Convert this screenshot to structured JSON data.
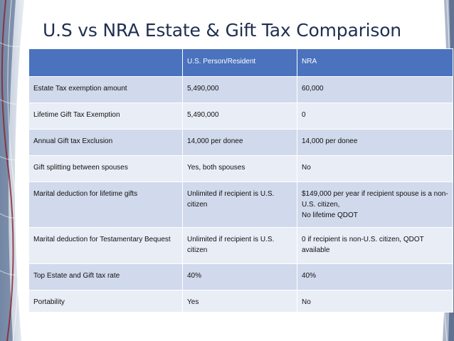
{
  "slide": {
    "title": "U.S vs NRA Estate & Gift Tax Comparison"
  },
  "table": {
    "headers": [
      "",
      "U.S. Person/Resident",
      "NRA"
    ],
    "rows": [
      [
        "Estate Tax exemption amount",
        "5,490,000",
        "60,000"
      ],
      [
        "Lifetime Gift Tax Exemption",
        "5,490,000",
        "0"
      ],
      [
        "Annual Gift tax Exclusion",
        "14,000 per donee",
        "14,000 per donee"
      ],
      [
        "Gift splitting between spouses",
        "Yes, both spouses",
        "No"
      ],
      [
        "Marital deduction for lifetime gifts",
        "Unlimited if recipient is U.S. citizen",
        "$149,000 per year if recipient spouse is a non-U.S. citizen,\nNo lifetime QDOT"
      ],
      [
        "Marital deduction for Testamentary Bequest",
        "Unlimited if recipient is U.S. citizen",
        "0 if recipient is non-U.S. citizen, QDOT available"
      ],
      [
        "Top Estate and Gift tax rate",
        "40%",
        "40%"
      ],
      [
        "Portability",
        "Yes",
        "No"
      ]
    ]
  },
  "colors": {
    "title": "#1f2f4f",
    "header_bg": "#4a72bd",
    "row_odd": "#d1d9ec",
    "row_even": "#e9edf6"
  }
}
